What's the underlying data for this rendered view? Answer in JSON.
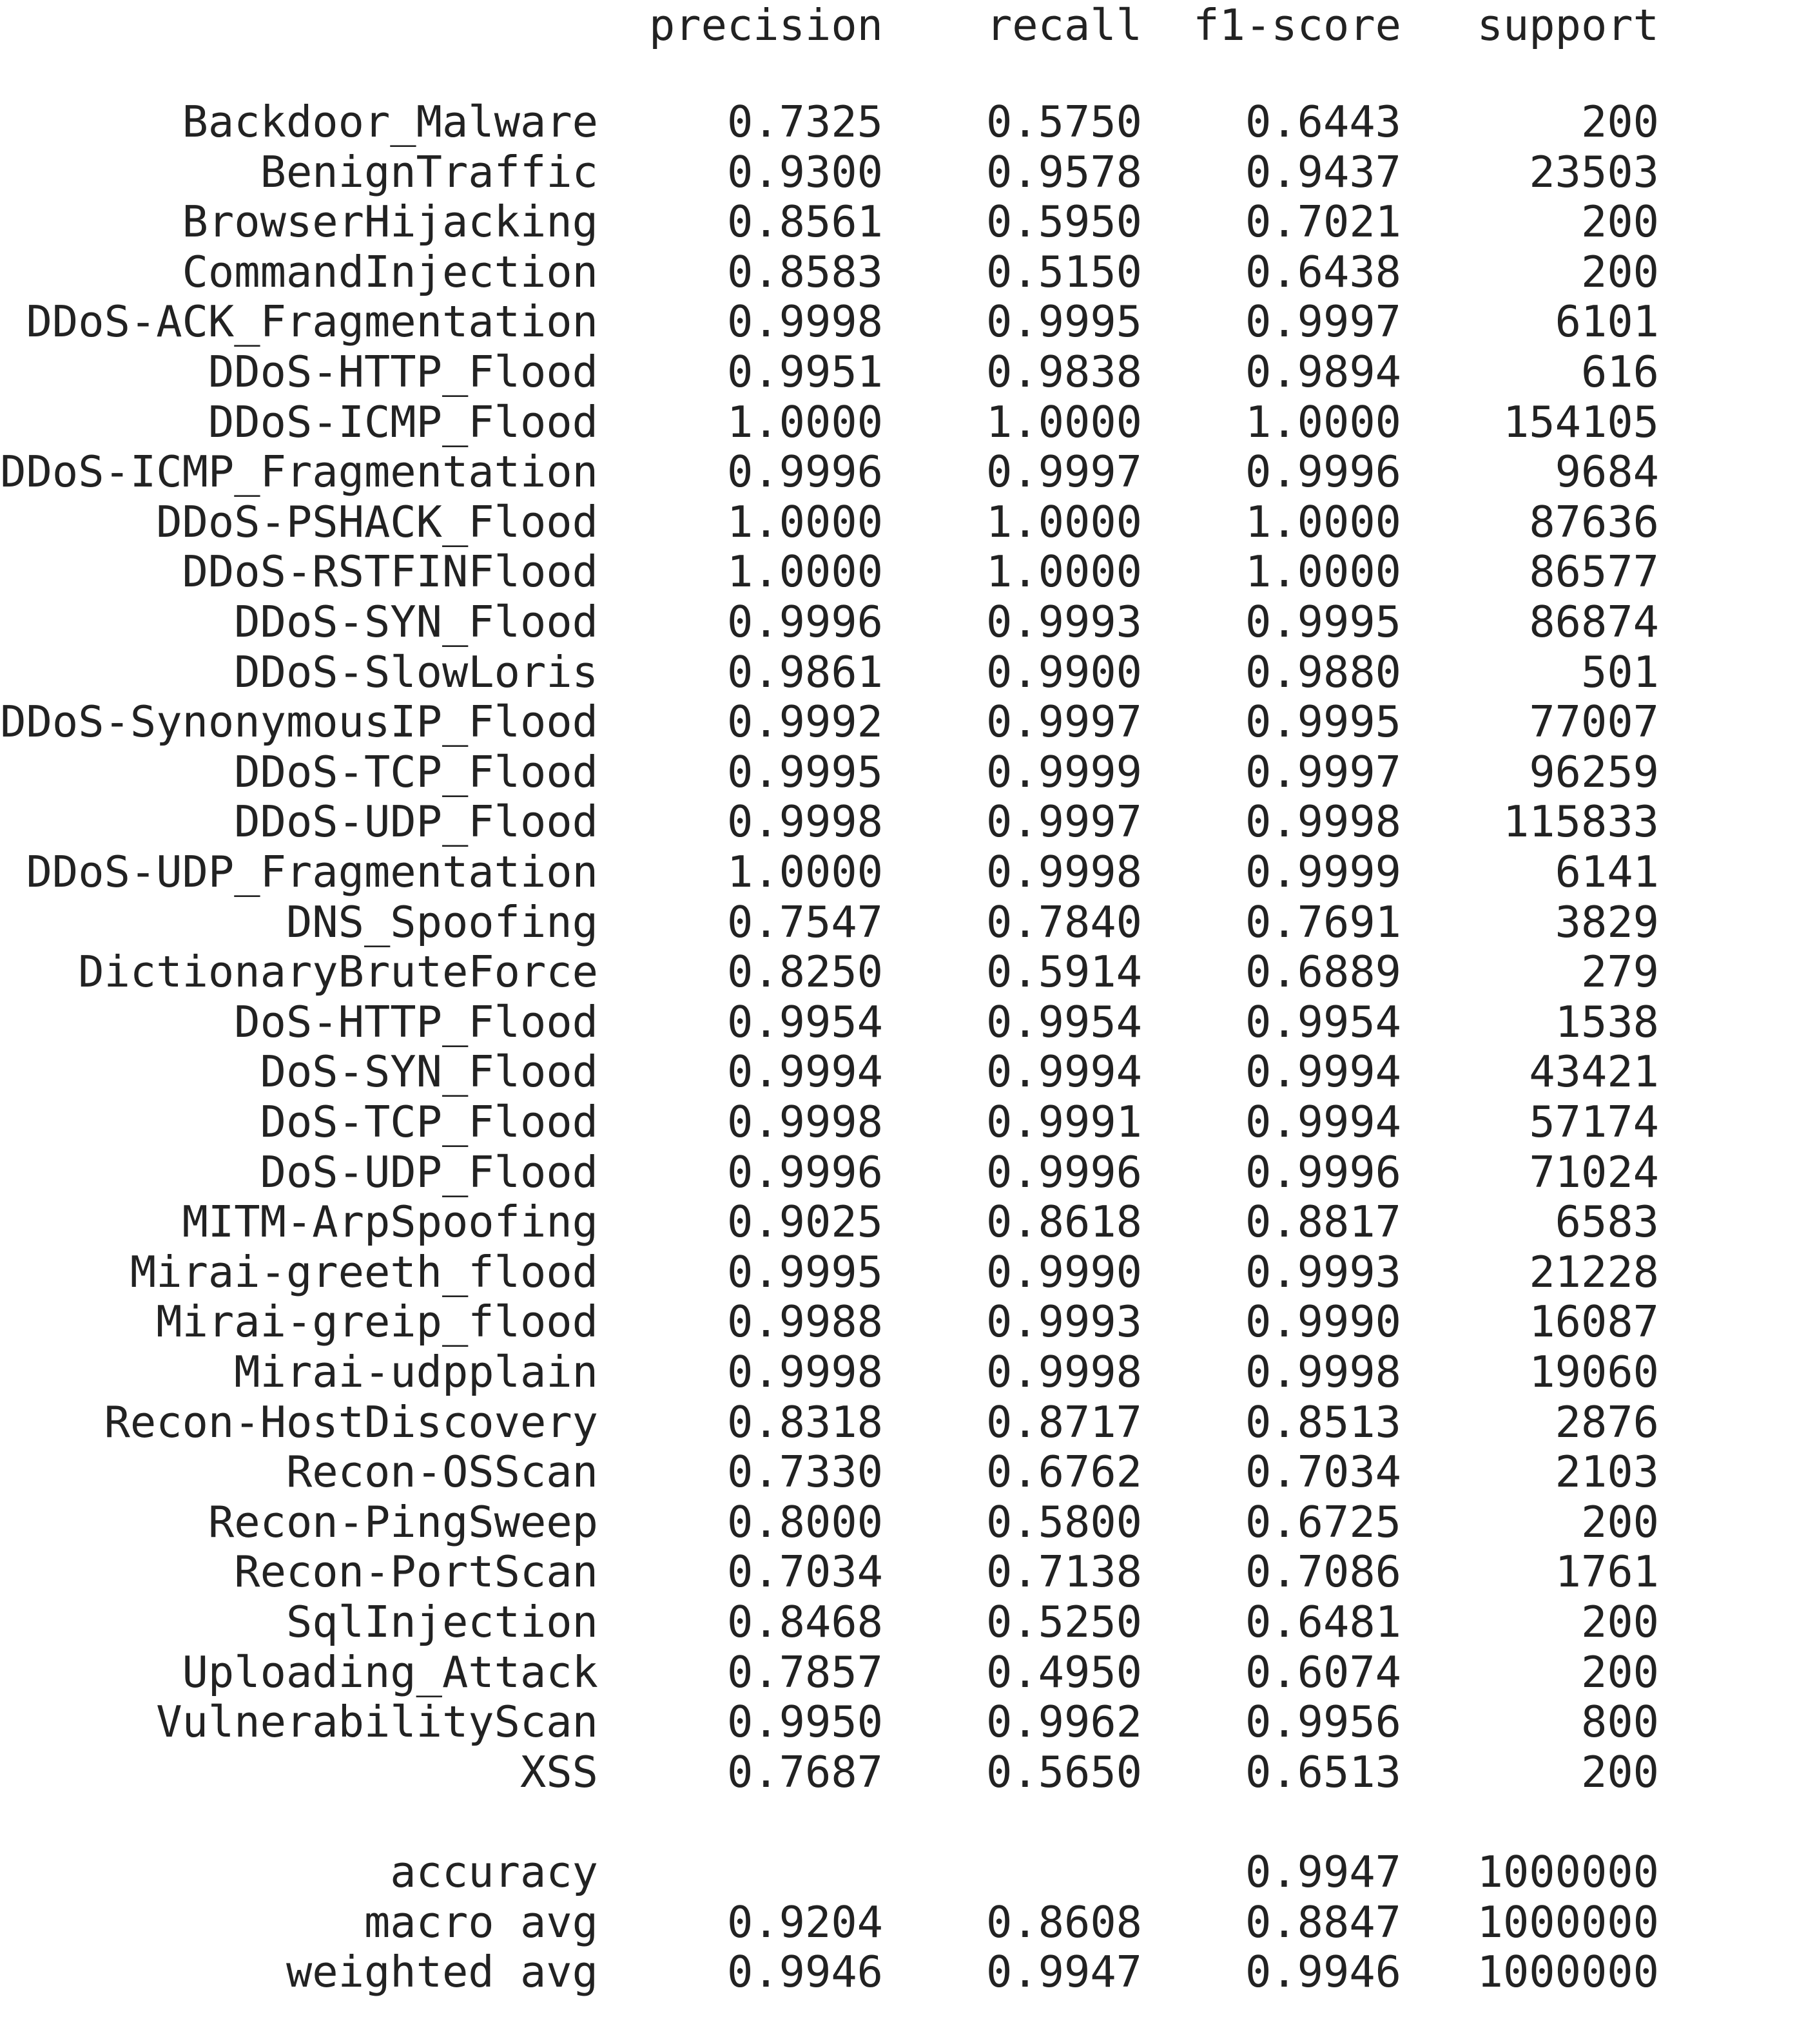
{
  "header": {
    "precision": "precision",
    "recall": "recall",
    "f1": "f1-score",
    "support": "support"
  },
  "rows": [
    {
      "label": "Backdoor_Malware",
      "precision": "0.7325",
      "recall": "0.5750",
      "f1": "0.6443",
      "support": "200"
    },
    {
      "label": "BenignTraffic",
      "precision": "0.9300",
      "recall": "0.9578",
      "f1": "0.9437",
      "support": "23503"
    },
    {
      "label": "BrowserHijacking",
      "precision": "0.8561",
      "recall": "0.5950",
      "f1": "0.7021",
      "support": "200"
    },
    {
      "label": "CommandInjection",
      "precision": "0.8583",
      "recall": "0.5150",
      "f1": "0.6438",
      "support": "200"
    },
    {
      "label": "DDoS-ACK_Fragmentation",
      "precision": "0.9998",
      "recall": "0.9995",
      "f1": "0.9997",
      "support": "6101"
    },
    {
      "label": "DDoS-HTTP_Flood",
      "precision": "0.9951",
      "recall": "0.9838",
      "f1": "0.9894",
      "support": "616"
    },
    {
      "label": "DDoS-ICMP_Flood",
      "precision": "1.0000",
      "recall": "1.0000",
      "f1": "1.0000",
      "support": "154105"
    },
    {
      "label": "DDoS-ICMP_Fragmentation",
      "precision": "0.9996",
      "recall": "0.9997",
      "f1": "0.9996",
      "support": "9684"
    },
    {
      "label": "DDoS-PSHACK_Flood",
      "precision": "1.0000",
      "recall": "1.0000",
      "f1": "1.0000",
      "support": "87636"
    },
    {
      "label": "DDoS-RSTFINFlood",
      "precision": "1.0000",
      "recall": "1.0000",
      "f1": "1.0000",
      "support": "86577"
    },
    {
      "label": "DDoS-SYN_Flood",
      "precision": "0.9996",
      "recall": "0.9993",
      "f1": "0.9995",
      "support": "86874"
    },
    {
      "label": "DDoS-SlowLoris",
      "precision": "0.9861",
      "recall": "0.9900",
      "f1": "0.9880",
      "support": "501"
    },
    {
      "label": "DDoS-SynonymousIP_Flood",
      "precision": "0.9992",
      "recall": "0.9997",
      "f1": "0.9995",
      "support": "77007"
    },
    {
      "label": "DDoS-TCP_Flood",
      "precision": "0.9995",
      "recall": "0.9999",
      "f1": "0.9997",
      "support": "96259"
    },
    {
      "label": "DDoS-UDP_Flood",
      "precision": "0.9998",
      "recall": "0.9997",
      "f1": "0.9998",
      "support": "115833"
    },
    {
      "label": "DDoS-UDP_Fragmentation",
      "precision": "1.0000",
      "recall": "0.9998",
      "f1": "0.9999",
      "support": "6141"
    },
    {
      "label": "DNS_Spoofing",
      "precision": "0.7547",
      "recall": "0.7840",
      "f1": "0.7691",
      "support": "3829"
    },
    {
      "label": "DictionaryBruteForce",
      "precision": "0.8250",
      "recall": "0.5914",
      "f1": "0.6889",
      "support": "279"
    },
    {
      "label": "DoS-HTTP_Flood",
      "precision": "0.9954",
      "recall": "0.9954",
      "f1": "0.9954",
      "support": "1538"
    },
    {
      "label": "DoS-SYN_Flood",
      "precision": "0.9994",
      "recall": "0.9994",
      "f1": "0.9994",
      "support": "43421"
    },
    {
      "label": "DoS-TCP_Flood",
      "precision": "0.9998",
      "recall": "0.9991",
      "f1": "0.9994",
      "support": "57174"
    },
    {
      "label": "DoS-UDP_Flood",
      "precision": "0.9996",
      "recall": "0.9996",
      "f1": "0.9996",
      "support": "71024"
    },
    {
      "label": "MITM-ArpSpoofing",
      "precision": "0.9025",
      "recall": "0.8618",
      "f1": "0.8817",
      "support": "6583"
    },
    {
      "label": "Mirai-greeth_flood",
      "precision": "0.9995",
      "recall": "0.9990",
      "f1": "0.9993",
      "support": "21228"
    },
    {
      "label": "Mirai-greip_flood",
      "precision": "0.9988",
      "recall": "0.9993",
      "f1": "0.9990",
      "support": "16087"
    },
    {
      "label": "Mirai-udpplain",
      "precision": "0.9998",
      "recall": "0.9998",
      "f1": "0.9998",
      "support": "19060"
    },
    {
      "label": "Recon-HostDiscovery",
      "precision": "0.8318",
      "recall": "0.8717",
      "f1": "0.8513",
      "support": "2876"
    },
    {
      "label": "Recon-OSScan",
      "precision": "0.7330",
      "recall": "0.6762",
      "f1": "0.7034",
      "support": "2103"
    },
    {
      "label": "Recon-PingSweep",
      "precision": "0.8000",
      "recall": "0.5800",
      "f1": "0.6725",
      "support": "200"
    },
    {
      "label": "Recon-PortScan",
      "precision": "0.7034",
      "recall": "0.7138",
      "f1": "0.7086",
      "support": "1761"
    },
    {
      "label": "SqlInjection",
      "precision": "0.8468",
      "recall": "0.5250",
      "f1": "0.6481",
      "support": "200"
    },
    {
      "label": "Uploading_Attack",
      "precision": "0.7857",
      "recall": "0.4950",
      "f1": "0.6074",
      "support": "200"
    },
    {
      "label": "VulnerabilityScan",
      "precision": "0.9950",
      "recall": "0.9962",
      "f1": "0.9956",
      "support": "800"
    },
    {
      "label": "XSS",
      "precision": "0.7687",
      "recall": "0.5650",
      "f1": "0.6513",
      "support": "200"
    }
  ],
  "summary": [
    {
      "label": "accuracy",
      "precision": "",
      "recall": "",
      "f1": "0.9947",
      "support": "1000000"
    },
    {
      "label": "macro avg",
      "precision": "0.9204",
      "recall": "0.8608",
      "f1": "0.8847",
      "support": "1000000"
    },
    {
      "label": "weighted avg",
      "precision": "0.9946",
      "recall": "0.9947",
      "f1": "0.9946",
      "support": "1000000"
    }
  ]
}
